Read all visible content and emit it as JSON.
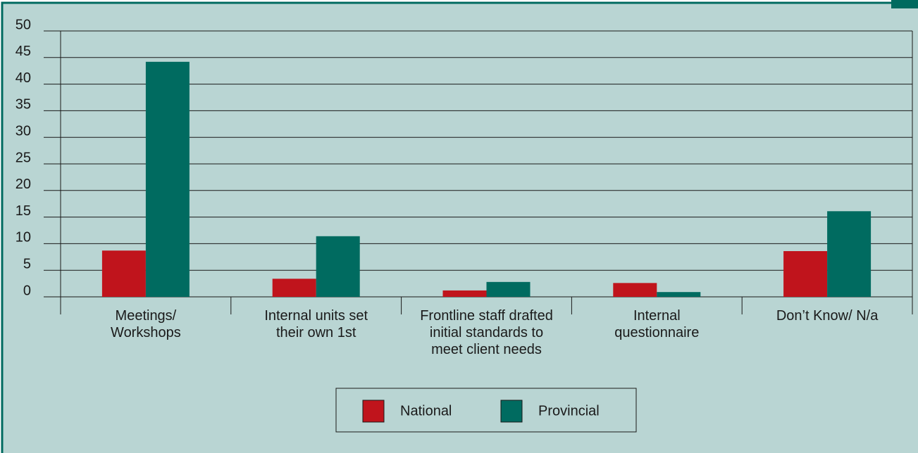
{
  "chart_data": {
    "type": "bar",
    "categories": [
      "Meetings/ Workshops",
      "Internal units set their own 1st",
      "Frontline staff drafted initial standards to meet client needs",
      "Internal questionnaire",
      "Don’t Know/ N/a"
    ],
    "series": [
      {
        "name": "National",
        "color": "#c0141c",
        "values": [
          8.7,
          3.4,
          1.2,
          2.6,
          8.6
        ]
      },
      {
        "name": "Provincial",
        "color": "#006b60",
        "values": [
          44.2,
          11.4,
          2.8,
          0.9,
          16.1
        ]
      }
    ],
    "ylim": [
      0,
      50
    ],
    "yticks": [
      0,
      5,
      10,
      15,
      20,
      25,
      30,
      35,
      40,
      45,
      50
    ],
    "grid": true
  }
}
